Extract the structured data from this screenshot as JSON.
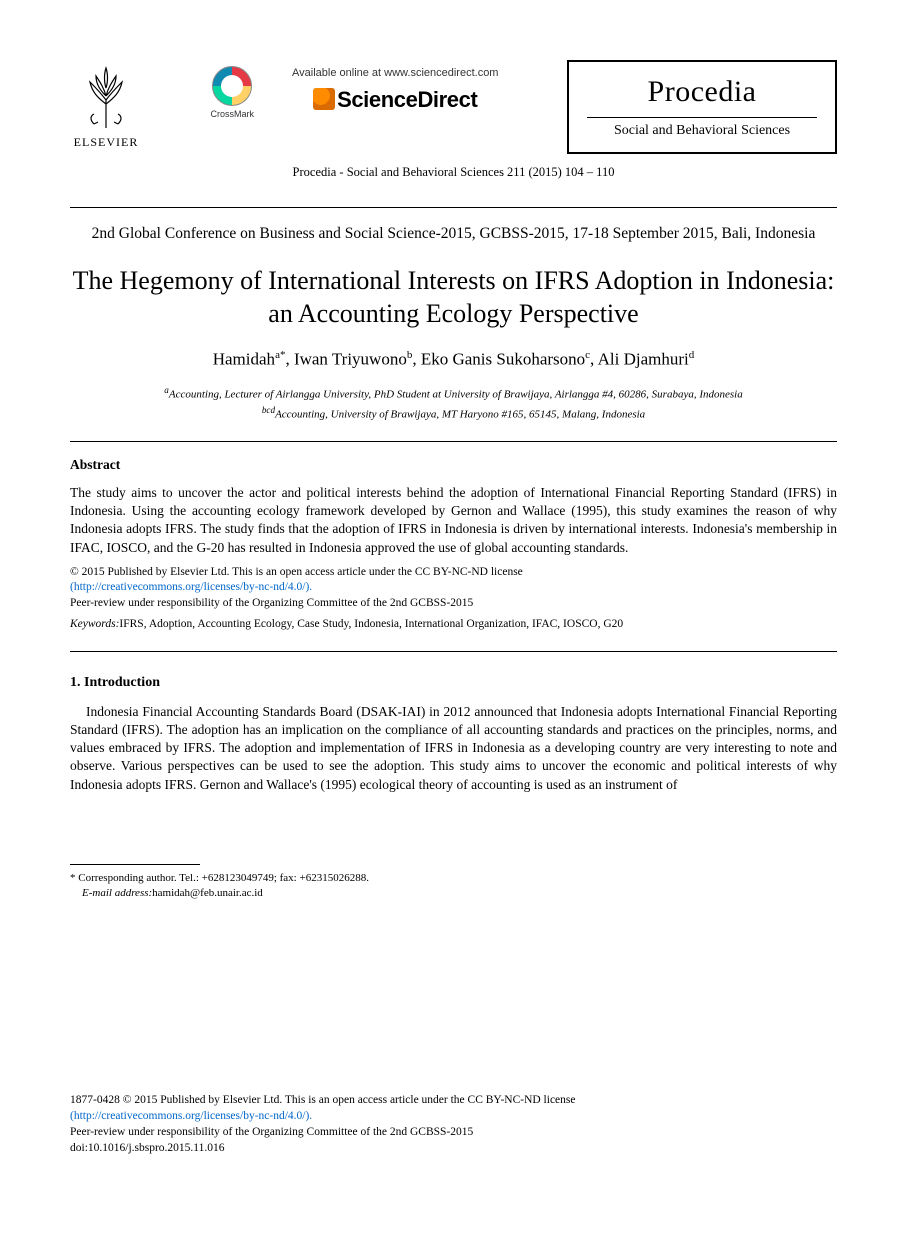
{
  "header": {
    "elsevier_label": "ELSEVIER",
    "crossmark_label": "CrossMark",
    "available_text": "Available online at www.sciencedirect.com",
    "sciencedirect_label": "ScienceDirect",
    "procedia_title": "Procedia",
    "procedia_subtitle": "Social and Behavioral Sciences",
    "journal_reference": "Procedia - Social and Behavioral Sciences 211 (2015) 104 – 110"
  },
  "conference": "2nd Global Conference on Business and Social Science-2015, GCBSS-2015, 17-18 September 2015, Bali, Indonesia",
  "title": "The Hegemony of International Interests on IFRS Adoption in Indonesia: an Accounting Ecology Perspective",
  "authors_html": "Hamidah<sup>a*</sup>, Iwan Triyuwono<sup>b</sup>, Eko Ganis Sukoharsono<sup>c</sup>, Ali Djamhuri<sup>d</sup>",
  "affiliations": {
    "a": "aAccounting, Lecturer of Airlangga University, PhD Student at University of Brawijaya,  Airlangga #4, 60286, Surabaya, Indonesia",
    "bcd": "bcdAccounting, University of Brawijaya, MT Haryono #165, 65145, Malang, Indonesia"
  },
  "abstract": {
    "heading": "Abstract",
    "text": "The study aims to uncover the actor and political interests behind the adoption of International Financial Reporting Standard (IFRS) in Indonesia.  Using the accounting ecology framework developed by Gernon and Wallace (1995), this study examines the reason of why Indonesia adopts IFRS.  The study finds that the adoption of IFRS in Indonesia is driven by international interests.  Indonesia's membership in IFAC, IOSCO, and the G-20 has resulted in Indonesia approved the use of global accounting standards."
  },
  "copyright": {
    "line1": "© 2015 Published by Elsevier Ltd. This is an open access article under the CC BY-NC-ND license",
    "link_text": "(http://creativecommons.org/licenses/by-nc-nd/4.0/).",
    "line2": "Peer-review under responsibility of the Organizing Committee of the 2nd GCBSS-2015"
  },
  "keywords": {
    "label": "Keywords:",
    "text": "IFRS, Adoption,  Accounting Ecology, Case Study, Indonesia,  International Organization, IFAC, IOSCO, G20"
  },
  "section1": {
    "heading": "1. Introduction",
    "para": "Indonesia Financial Accounting Standards Board (DSAK-IAI) in 2012 announced that Indonesia adopts International Financial Reporting Standard (IFRS). The adoption has an implication on the compliance of all accounting standards and practices on the principles, norms, and values embraced by IFRS.  The adoption and implementation of IFRS in Indonesia as a developing country are very interesting to note and observe.  Various perspectives can be used to see the adoption.  This study aims to uncover the economic and political interests of why Indonesia adopts IFRS.   Gernon and Wallace's (1995) ecological theory of accounting is used as an instrument of"
  },
  "footnote": {
    "corr": "* Corresponding author. Tel.: +628123049749; fax: +62315026288.",
    "email_label": "E-mail address:",
    "email": "hamidah@feb.unair.ac.id"
  },
  "footer": {
    "issn_line": "1877-0428 © 2015 Published by Elsevier Ltd. This is an open access article under the CC BY-NC-ND license",
    "link_text": "(http://creativecommons.org/licenses/by-nc-nd/4.0/).",
    "peer": "Peer-review under responsibility of the Organizing Committee of the 2nd GCBSS-2015",
    "doi": "doi:10.1016/j.sbspro.2015.11.016"
  }
}
